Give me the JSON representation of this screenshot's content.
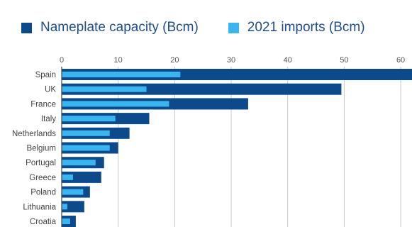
{
  "chart_data": {
    "type": "bar",
    "orientation": "horizontal",
    "title": "",
    "xlabel": "",
    "ylabel": "",
    "categories": [
      "Spain",
      "UK",
      "France",
      "Italy",
      "Netherlands",
      "Belgium",
      "Portugal",
      "Greece",
      "Poland",
      "Lithuania",
      "Croatia"
    ],
    "series": [
      {
        "name": "Nameplate capacity (Bcm)",
        "color": "#0d4a8c",
        "values": [
          62,
          49.5,
          33,
          15.5,
          12,
          10,
          7.5,
          7,
          5,
          4,
          2.5
        ]
      },
      {
        "name": "2021 imports (Bcm)",
        "color": "#3ab5ef",
        "values": [
          21,
          15,
          19,
          9.5,
          8.5,
          8.5,
          6,
          2,
          3.8,
          1,
          1.5
        ]
      }
    ],
    "xlim": [
      0,
      62
    ],
    "xticks": [
      0,
      10,
      20,
      30,
      40,
      50,
      60
    ],
    "x_axis_position": "top",
    "grid": "vertical",
    "legend_position": "top"
  }
}
